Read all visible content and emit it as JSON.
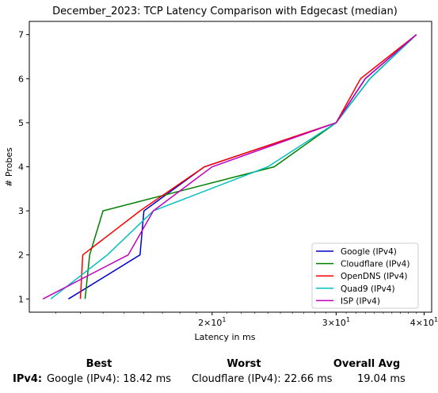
{
  "chart_data": {
    "type": "line",
    "title": "December_2023: TCP Latency Comparison with Edgecast (median)",
    "xlabel": "Latency in ms",
    "ylabel": "# Probes",
    "xscale": "log",
    "xlim": [
      11.0,
      41.0
    ],
    "ylim": [
      0.7,
      7.3
    ],
    "yticks": [
      1,
      2,
      3,
      4,
      5,
      6,
      7
    ],
    "xticks": [
      {
        "value": 20,
        "base": "2",
        "exp": "1"
      },
      {
        "value": 30,
        "base": "3",
        "exp": "1"
      },
      {
        "value": 40,
        "base": "4",
        "exp": "1"
      }
    ],
    "legend_position": "lower-right",
    "grid": false,
    "series": [
      {
        "name": "Google (IPv4)",
        "color": "#0000cc",
        "x": [
          12.5,
          15.8,
          16.0,
          19.5,
          30.0,
          33.0,
          39.0
        ],
        "y": [
          1,
          2,
          3,
          4,
          5,
          6,
          7
        ]
      },
      {
        "name": "Cloudflare (IPv4)",
        "color": "#008000",
        "x": [
          13.2,
          13.4,
          14.0,
          24.5,
          30.0,
          33.5,
          39.0
        ],
        "y": [
          1,
          2,
          3,
          4,
          5,
          6,
          7
        ]
      },
      {
        "name": "OpenDNS (IPv4)",
        "color": "#ff0000",
        "x": [
          13.0,
          13.1,
          15.8,
          19.5,
          30.0,
          32.5,
          39.0
        ],
        "y": [
          1,
          2,
          3,
          4,
          5,
          6,
          7
        ]
      },
      {
        "name": "Quad9 (IPv4)",
        "color": "#00bfbf",
        "x": [
          11.8,
          14.2,
          16.5,
          24.0,
          30.0,
          33.5,
          39.0
        ],
        "y": [
          1,
          2,
          3,
          4,
          5,
          6,
          7
        ]
      },
      {
        "name": "ISP (IPv4)",
        "color": "#bf00bf",
        "x": [
          11.5,
          15.2,
          16.5,
          20.0,
          30.0,
          33.0,
          39.0
        ],
        "y": [
          1,
          2,
          3,
          4,
          5,
          6,
          7
        ]
      }
    ]
  },
  "summary": {
    "headers": {
      "best": "Best",
      "worst": "Worst",
      "overall": "Overall Avg"
    },
    "row_label": "IPv4:",
    "best": "Google (IPv4): 18.42 ms",
    "worst": "Cloudflare (IPv4): 22.66 ms",
    "overall": "19.04 ms"
  }
}
